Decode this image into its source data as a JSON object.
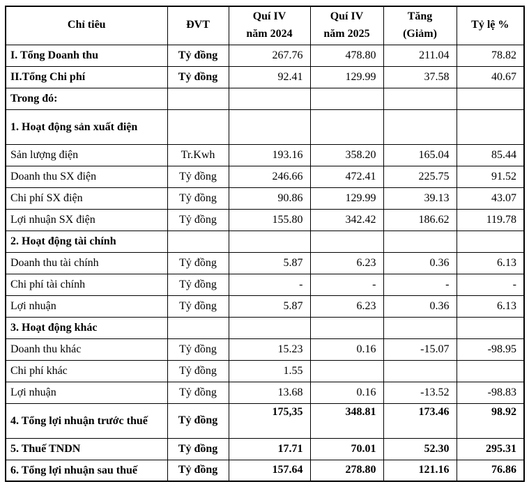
{
  "page": {
    "background_color": "#ffffff",
    "border_color": "#000000",
    "text_color": "#000000"
  },
  "table": {
    "headers": [
      {
        "label": "Chỉ tiêu"
      },
      {
        "label": "ĐVT"
      },
      {
        "label": "Quí IV\nnăm 2024"
      },
      {
        "label": "Quí IV\nnăm 2025"
      },
      {
        "label": "Tăng\n(Giảm)"
      },
      {
        "label": "Tỷ lệ %"
      }
    ],
    "rows": [
      {
        "label": "I. Tổng Doanh thu",
        "unit": "Tỷ đồng",
        "q4_2024": "267.76",
        "q4_2025": "478.80",
        "change": "211.04",
        "pct": "78.82",
        "bold_label": true,
        "bold_unit": true,
        "bold_values": false,
        "justify": false,
        "tall": false
      },
      {
        "label": "II.Tổng Chi phí",
        "unit": "Tỷ đồng",
        "q4_2024": "92.41",
        "q4_2025": "129.99",
        "change": "37.58",
        "pct": "40.67",
        "bold_label": true,
        "bold_unit": true,
        "bold_values": false,
        "justify": false,
        "tall": false
      },
      {
        "label": "Trong đó:",
        "unit": "",
        "q4_2024": "",
        "q4_2025": "",
        "change": "",
        "pct": "",
        "bold_label": true,
        "bold_unit": false,
        "bold_values": false,
        "justify": false,
        "tall": false
      },
      {
        "label": "1. Hoạt động sản xuất điện",
        "unit": "",
        "q4_2024": "",
        "q4_2025": "",
        "change": "",
        "pct": "",
        "bold_label": true,
        "bold_unit": false,
        "bold_values": false,
        "justify": true,
        "tall": true
      },
      {
        "label": "Sản lượng điện",
        "unit": "Tr.Kwh",
        "q4_2024": "193.16",
        "q4_2025": "358.20",
        "change": "165.04",
        "pct": "85.44",
        "bold_label": false,
        "bold_unit": false,
        "bold_values": false,
        "justify": false,
        "tall": false
      },
      {
        "label": "Doanh thu SX điện",
        "unit": "Tỷ đồng",
        "q4_2024": "246.66",
        "q4_2025": "472.41",
        "change": "225.75",
        "pct": "91.52",
        "bold_label": false,
        "bold_unit": false,
        "bold_values": false,
        "justify": false,
        "tall": false
      },
      {
        "label": "Chi phí SX điện",
        "unit": "Tỷ đồng",
        "q4_2024": "90.86",
        "q4_2025": "129.99",
        "change": "39.13",
        "pct": "43.07",
        "bold_label": false,
        "bold_unit": false,
        "bold_values": false,
        "justify": false,
        "tall": false
      },
      {
        "label": "Lợi nhuận SX điện",
        "unit": "Tỷ đồng",
        "q4_2024": "155.80",
        "q4_2025": "342.42",
        "change": "186.62",
        "pct": "119.78",
        "bold_label": false,
        "bold_unit": false,
        "bold_values": false,
        "justify": false,
        "tall": false
      },
      {
        "label": "2. Hoạt động tài chính",
        "unit": "",
        "q4_2024": "",
        "q4_2025": "",
        "change": "",
        "pct": "",
        "bold_label": true,
        "bold_unit": false,
        "bold_values": false,
        "justify": false,
        "tall": false
      },
      {
        "label": "Doanh thu tài chính",
        "unit": "Tỷ đồng",
        "q4_2024": "5.87",
        "q4_2025": "6.23",
        "change": "0.36",
        "pct": "6.13",
        "bold_label": false,
        "bold_unit": false,
        "bold_values": false,
        "justify": false,
        "tall": false
      },
      {
        "label": "Chi phí tài chính",
        "unit": "Tỷ đồng",
        "q4_2024": "-",
        "q4_2025": "-",
        "change": "-",
        "pct": "-",
        "bold_label": false,
        "bold_unit": false,
        "bold_values": false,
        "justify": false,
        "tall": false
      },
      {
        "label": "Lợi nhuận",
        "unit": "Tỷ đồng",
        "q4_2024": "5.87",
        "q4_2025": "6.23",
        "change": "0.36",
        "pct": "6.13",
        "bold_label": false,
        "bold_unit": false,
        "bold_values": false,
        "justify": false,
        "tall": false
      },
      {
        "label": "3. Hoạt động khác",
        "unit": "",
        "q4_2024": "",
        "q4_2025": "",
        "change": "",
        "pct": "",
        "bold_label": true,
        "bold_unit": false,
        "bold_values": false,
        "justify": false,
        "tall": false
      },
      {
        "label": "Doanh thu khác",
        "unit": "Tỷ đồng",
        "q4_2024": "15.23",
        "q4_2025": "0.16",
        "change": "-15.07",
        "pct": "-98.95",
        "bold_label": false,
        "bold_unit": false,
        "bold_values": false,
        "justify": false,
        "tall": false
      },
      {
        "label": "Chi phí khác",
        "unit": "Tỷ đồng",
        "q4_2024": "1.55",
        "q4_2025": "",
        "change": "",
        "pct": "",
        "bold_label": false,
        "bold_unit": false,
        "bold_values": false,
        "justify": false,
        "tall": false
      },
      {
        "label": "Lợi nhuận",
        "unit": "Tỷ đồng",
        "q4_2024": "13.68",
        "q4_2025": "0.16",
        "change": "-13.52",
        "pct": "-98.83",
        "bold_label": false,
        "bold_unit": false,
        "bold_values": false,
        "justify": false,
        "tall": false
      },
      {
        "label": "4. Tổng lợi nhuận trước thuế",
        "unit": "Tỷ đồng",
        "q4_2024": "175,35",
        "q4_2025": "348.81",
        "change": "173.46",
        "pct": "98.92",
        "bold_label": true,
        "bold_unit": true,
        "bold_values": true,
        "justify": true,
        "tall": true
      },
      {
        "label": "5. Thuế TNDN",
        "unit": "Tỷ đồng",
        "q4_2024": "17.71",
        "q4_2025": "70.01",
        "change": "52.30",
        "pct": "295.31",
        "bold_label": true,
        "bold_unit": true,
        "bold_values": true,
        "justify": false,
        "tall": false
      },
      {
        "label": "6. Tổng lợi nhuận sau thuế",
        "unit": "Tỷ đồng",
        "q4_2024": "157.64",
        "q4_2025": "278.80",
        "change": "121.16",
        "pct": "76.86",
        "bold_label": true,
        "bold_unit": true,
        "bold_values": true,
        "justify": false,
        "tall": false
      }
    ]
  }
}
